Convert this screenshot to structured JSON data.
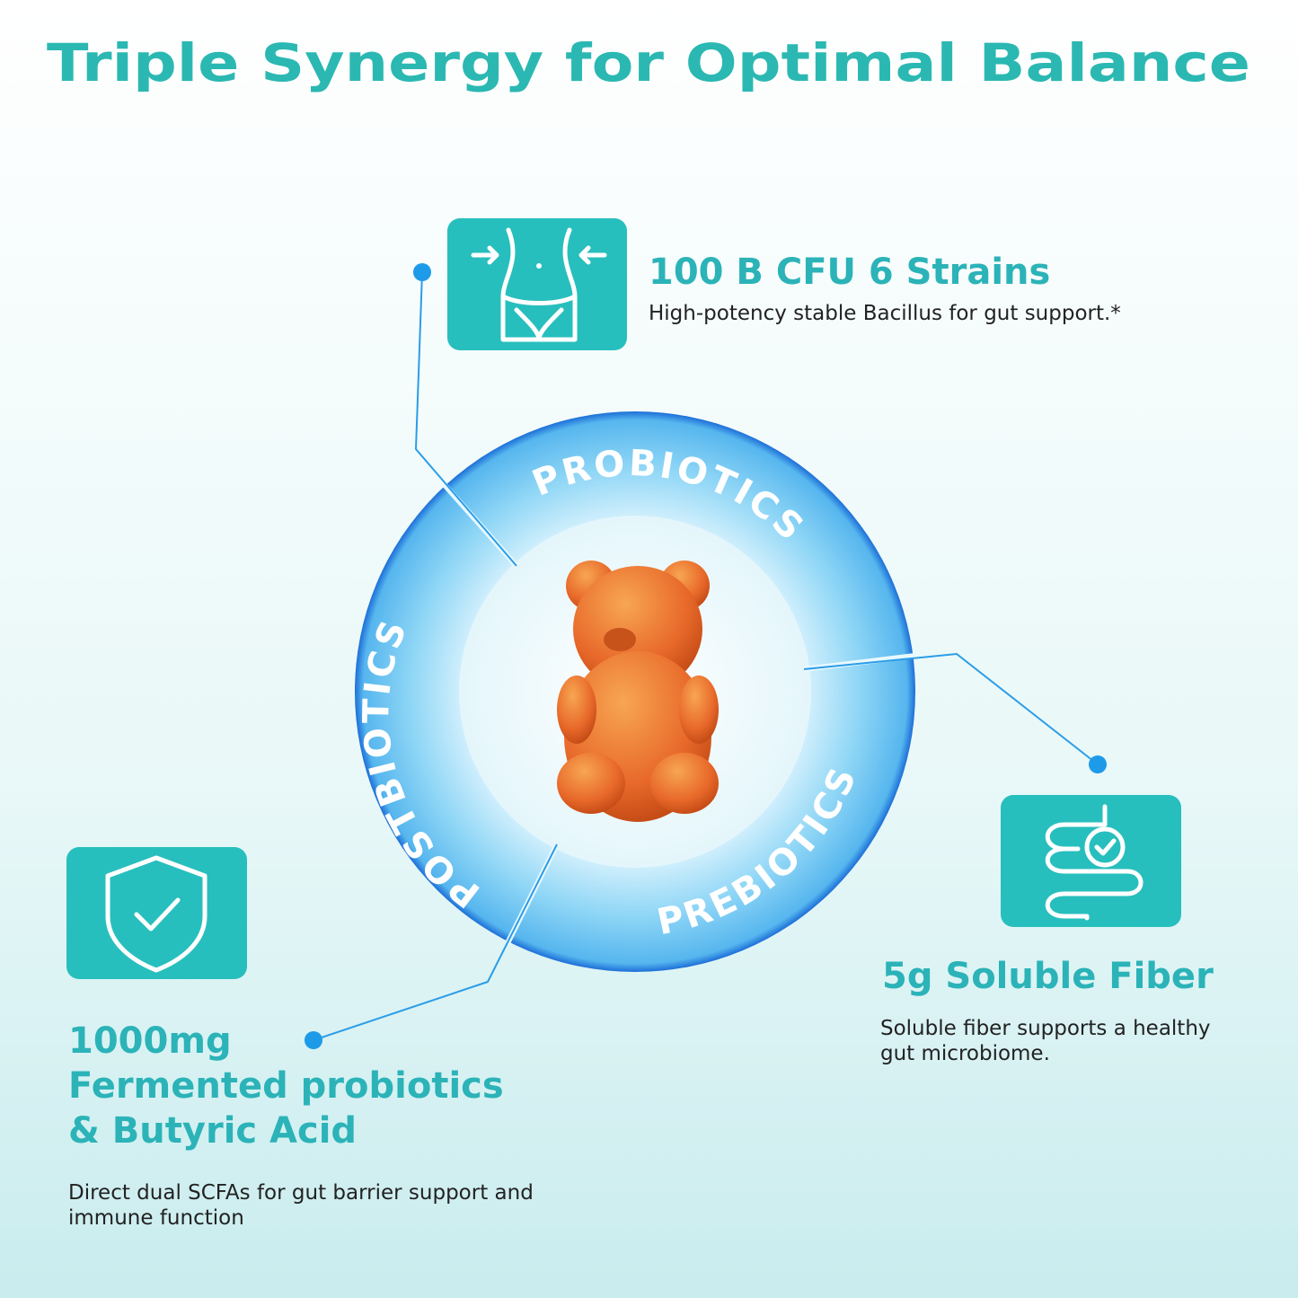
{
  "header": {
    "title": "Triple Synergy for Optimal Balance"
  },
  "ring": {
    "labels": [
      "PROBIOTICS",
      "POSTBIOTICS",
      "PREBIOTICS"
    ]
  },
  "features": [
    {
      "heading": [
        "100 B CFU 6 Strains"
      ],
      "description": [
        "High-potency stable Bacillus for gut support.*"
      ]
    },
    {
      "heading": [
        "1000mg",
        "Fermented probiotics",
        "& Butyric Acid"
      ],
      "description": [
        "Direct dual SCFAs for gut barrier support and",
        "immune function"
      ]
    },
    {
      "heading": [
        "5g Soluble Fiber"
      ],
      "description": [
        "Soluble fiber supports a healthy",
        "gut microbiome."
      ]
    }
  ]
}
